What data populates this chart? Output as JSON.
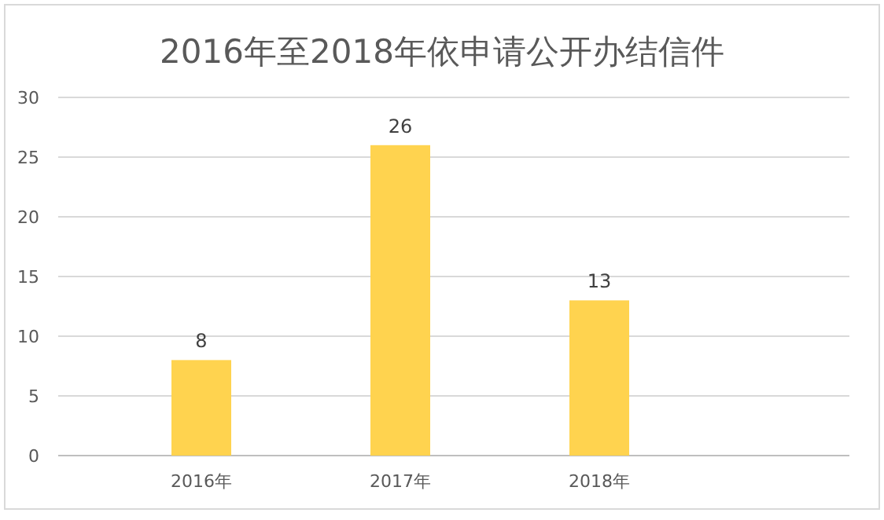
{
  "chart_data": {
    "type": "bar",
    "title": "2016年至2018年依申请公开办结信件",
    "categories": [
      "2016年",
      "2017年",
      "2018年",
      null
    ],
    "values": [
      8,
      26,
      13,
      null
    ],
    "color": "#ffd34f",
    "ylim": [
      0,
      30
    ],
    "yticks": [
      0,
      5,
      10,
      15,
      20,
      25,
      30
    ],
    "grid": "y",
    "data_labels": true
  }
}
